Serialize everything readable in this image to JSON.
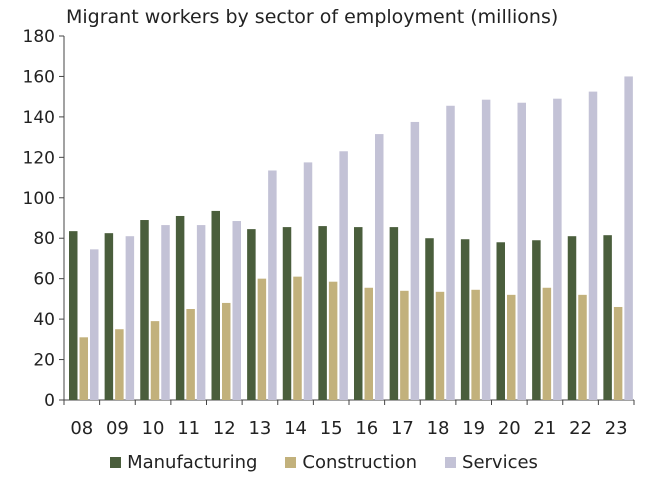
{
  "chart_data": {
    "type": "bar",
    "title": "Migrant workers by sector of employment (millions)",
    "xlabel": "",
    "ylabel": "",
    "categories": [
      "08",
      "09",
      "10",
      "11",
      "12",
      "13",
      "14",
      "15",
      "16",
      "17",
      "18",
      "19",
      "20",
      "21",
      "22",
      "23"
    ],
    "ylim": [
      0,
      180
    ],
    "yticks": [
      0,
      20,
      40,
      60,
      80,
      100,
      120,
      140,
      160,
      180
    ],
    "grid": false,
    "legend_position": "bottom",
    "series": [
      {
        "name": "Manufacturing",
        "color": "#4a5e3c",
        "values": [
          83.5,
          82.5,
          89,
          91,
          93.5,
          84.5,
          85.5,
          86,
          85.5,
          85.5,
          80,
          79.5,
          78,
          79,
          81,
          81.5
        ]
      },
      {
        "name": "Construction",
        "color": "#c2b17c",
        "values": [
          31,
          35,
          39,
          45,
          48,
          60,
          61,
          58.5,
          55.5,
          54,
          53.5,
          54.5,
          52,
          55.5,
          52,
          46
        ]
      },
      {
        "name": "Services",
        "color": "#c3c2d6",
        "values": [
          74.5,
          81,
          86.5,
          86.5,
          88.5,
          113.5,
          117.5,
          123,
          131.5,
          137.5,
          145.5,
          148.5,
          147,
          149,
          152.5,
          160
        ]
      }
    ]
  }
}
